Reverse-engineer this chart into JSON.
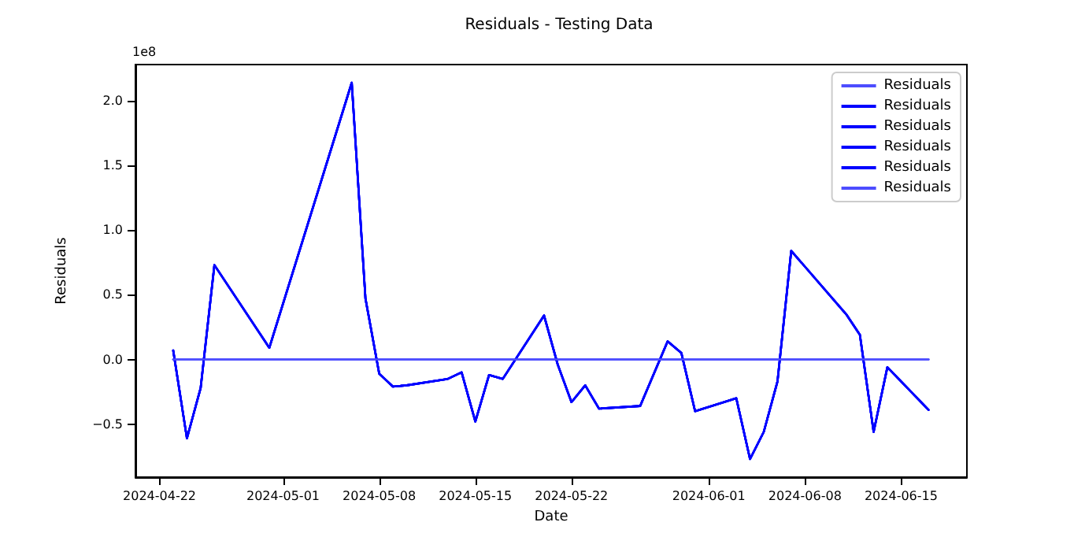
{
  "chart_data": {
    "type": "line",
    "title": "Residuals - Testing Data",
    "xlabel": "Date",
    "ylabel": "Residuals",
    "annotations": [
      "1e8"
    ],
    "series": [
      {
        "name": "Residuals",
        "color": "#4d4dff",
        "x": [
          "2024-04-23",
          "2024-06-17"
        ],
        "values": [
          0,
          0
        ]
      },
      {
        "name": "Residuals",
        "color": "#0000ff",
        "x": [
          "2024-04-23",
          "2024-04-24",
          "2024-04-25",
          "2024-04-26",
          "2024-04-30",
          "2024-05-06",
          "2024-05-07",
          "2024-05-08",
          "2024-05-09",
          "2024-05-10",
          "2024-05-13",
          "2024-05-14",
          "2024-05-15",
          "2024-05-16",
          "2024-05-17",
          "2024-05-20",
          "2024-05-21",
          "2024-05-22",
          "2024-05-23",
          "2024-05-24",
          "2024-05-27",
          "2024-05-29",
          "2024-05-30",
          "2024-05-31",
          "2024-06-03",
          "2024-06-04",
          "2024-06-05",
          "2024-06-06",
          "2024-06-07",
          "2024-06-11",
          "2024-06-12",
          "2024-06-13",
          "2024-06-14",
          "2024-06-17"
        ],
        "values": [
          0.07,
          -0.61,
          -0.22,
          0.73,
          0.09,
          2.14,
          0.47,
          -0.11,
          -0.21,
          -0.2,
          -0.15,
          -0.1,
          -0.48,
          -0.12,
          -0.15,
          0.34,
          -0.04,
          -0.33,
          -0.2,
          -0.38,
          -0.36,
          0.14,
          0.05,
          -0.4,
          -0.3,
          -0.77,
          -0.56,
          -0.17,
          0.84,
          0.35,
          0.19,
          -0.56,
          -0.06,
          -0.39
        ]
      },
      {
        "name": "Residuals",
        "color": "#0000ff",
        "x": [
          "2024-04-23",
          "2024-04-24",
          "2024-04-25",
          "2024-04-26",
          "2024-04-30",
          "2024-05-06",
          "2024-05-07",
          "2024-05-08",
          "2024-05-09",
          "2024-05-10",
          "2024-05-13",
          "2024-05-14",
          "2024-05-15",
          "2024-05-16",
          "2024-05-17",
          "2024-05-20",
          "2024-05-21",
          "2024-05-22",
          "2024-05-23",
          "2024-05-24",
          "2024-05-27",
          "2024-05-29",
          "2024-05-30",
          "2024-05-31",
          "2024-06-03",
          "2024-06-04",
          "2024-06-05",
          "2024-06-06",
          "2024-06-07",
          "2024-06-11",
          "2024-06-12",
          "2024-06-13",
          "2024-06-14",
          "2024-06-17"
        ],
        "values": [
          0.07,
          -0.61,
          -0.22,
          0.73,
          0.09,
          2.14,
          0.47,
          -0.11,
          -0.21,
          -0.2,
          -0.15,
          -0.1,
          -0.48,
          -0.12,
          -0.15,
          0.34,
          -0.04,
          -0.33,
          -0.2,
          -0.38,
          -0.36,
          0.14,
          0.05,
          -0.4,
          -0.3,
          -0.77,
          -0.56,
          -0.17,
          0.84,
          0.35,
          0.19,
          -0.56,
          -0.06,
          -0.39
        ]
      },
      {
        "name": "Residuals",
        "color": "#0000ff",
        "x": [
          "2024-04-23",
          "2024-04-24",
          "2024-04-25",
          "2024-04-26",
          "2024-04-30",
          "2024-05-06",
          "2024-05-07",
          "2024-05-08",
          "2024-05-09",
          "2024-05-10",
          "2024-05-13",
          "2024-05-14",
          "2024-05-15",
          "2024-05-16",
          "2024-05-17",
          "2024-05-20",
          "2024-05-21",
          "2024-05-22",
          "2024-05-23",
          "2024-05-24",
          "2024-05-27",
          "2024-05-29",
          "2024-05-30",
          "2024-05-31",
          "2024-06-03",
          "2024-06-04",
          "2024-06-05",
          "2024-06-06",
          "2024-06-07",
          "2024-06-11",
          "2024-06-12",
          "2024-06-13",
          "2024-06-14",
          "2024-06-17"
        ],
        "values": [
          0.07,
          -0.61,
          -0.22,
          0.73,
          0.09,
          2.14,
          0.47,
          -0.11,
          -0.21,
          -0.2,
          -0.15,
          -0.1,
          -0.48,
          -0.12,
          -0.15,
          0.34,
          -0.04,
          -0.33,
          -0.2,
          -0.38,
          -0.36,
          0.14,
          0.05,
          -0.4,
          -0.3,
          -0.77,
          -0.56,
          -0.17,
          0.84,
          0.35,
          0.19,
          -0.56,
          -0.06,
          -0.39
        ]
      },
      {
        "name": "Residuals",
        "color": "#0000ff",
        "x": [
          "2024-04-23",
          "2024-04-24",
          "2024-04-25",
          "2024-04-26",
          "2024-04-30",
          "2024-05-06",
          "2024-05-07",
          "2024-05-08",
          "2024-05-09",
          "2024-05-10",
          "2024-05-13",
          "2024-05-14",
          "2024-05-15",
          "2024-05-16",
          "2024-05-17",
          "2024-05-20",
          "2024-05-21",
          "2024-05-22",
          "2024-05-23",
          "2024-05-24",
          "2024-05-27",
          "2024-05-29",
          "2024-05-30",
          "2024-05-31",
          "2024-06-03",
          "2024-06-04",
          "2024-06-05",
          "2024-06-06",
          "2024-06-07",
          "2024-06-11",
          "2024-06-12",
          "2024-06-13",
          "2024-06-14",
          "2024-06-17"
        ],
        "values": [
          0.07,
          -0.61,
          -0.22,
          0.73,
          0.09,
          2.14,
          0.47,
          -0.11,
          -0.21,
          -0.2,
          -0.15,
          -0.1,
          -0.48,
          -0.12,
          -0.15,
          0.34,
          -0.04,
          -0.33,
          -0.2,
          -0.38,
          -0.36,
          0.14,
          0.05,
          -0.4,
          -0.3,
          -0.77,
          -0.56,
          -0.17,
          0.84,
          0.35,
          0.19,
          -0.56,
          -0.06,
          -0.39
        ]
      },
      {
        "name": "Residuals",
        "color": "#4d4dff",
        "x": [
          "2024-04-23",
          "2024-06-17"
        ],
        "values": [
          0,
          0
        ]
      }
    ],
    "xlim": [
      "2024-04-20T06:00",
      "2024-06-19T19:00"
    ],
    "xticks": [
      "2024-04-22",
      "2024-05-01",
      "2024-05-08",
      "2024-05-15",
      "2024-05-22",
      "2024-06-01",
      "2024-06-08",
      "2024-06-15"
    ],
    "ylim": [
      -0.91,
      2.28
    ],
    "yticks": [
      {
        "value": -0.5,
        "label": "−0.5"
      },
      {
        "value": 0,
        "label": "0.0"
      },
      {
        "value": 0.5,
        "label": "0.5"
      },
      {
        "value": 1,
        "label": "1.0"
      },
      {
        "value": 1.5,
        "label": "1.5"
      },
      {
        "value": 2,
        "label": "2.0"
      }
    ],
    "grid": false,
    "legend": "top right",
    "marker": "none",
    "line_style": "solid"
  }
}
